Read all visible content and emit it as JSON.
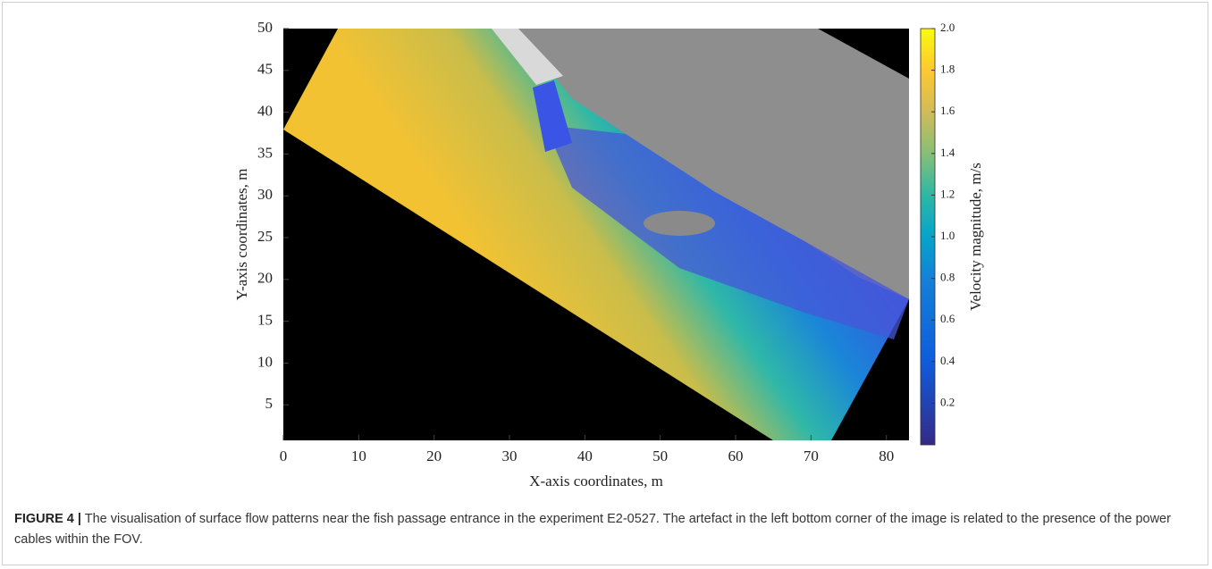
{
  "caption": {
    "label": "FIGURE 4 |",
    "text": "The visualisation of surface flow patterns near the fish passage entrance in the experiment E2-0527. The artefact in the left bottom corner of the image is related to the presence of the power cables within the FOV."
  },
  "chart_data": {
    "type": "image",
    "xlabel": "X-axis coordinates, m",
    "ylabel": "Y-axis coordinates, m",
    "xlim": [
      0,
      83
    ],
    "xticks": [
      0,
      10,
      20,
      30,
      40,
      50,
      60,
      70,
      80
    ],
    "ylim": [
      0,
      50
    ],
    "yticks": [
      5,
      10,
      15,
      20,
      25,
      30,
      35,
      40,
      45,
      50
    ],
    "colorbar": {
      "label": "Velocity magnitude, m/s",
      "clim": [
        0,
        2
      ],
      "ticks": [
        0.2,
        0.4,
        0.6,
        0.8,
        {
          "value": 1,
          "label": "1.0"
        },
        1.2,
        1.4,
        1.6,
        1.8,
        {
          "value": 2,
          "label": "2.0"
        }
      ]
    }
  }
}
